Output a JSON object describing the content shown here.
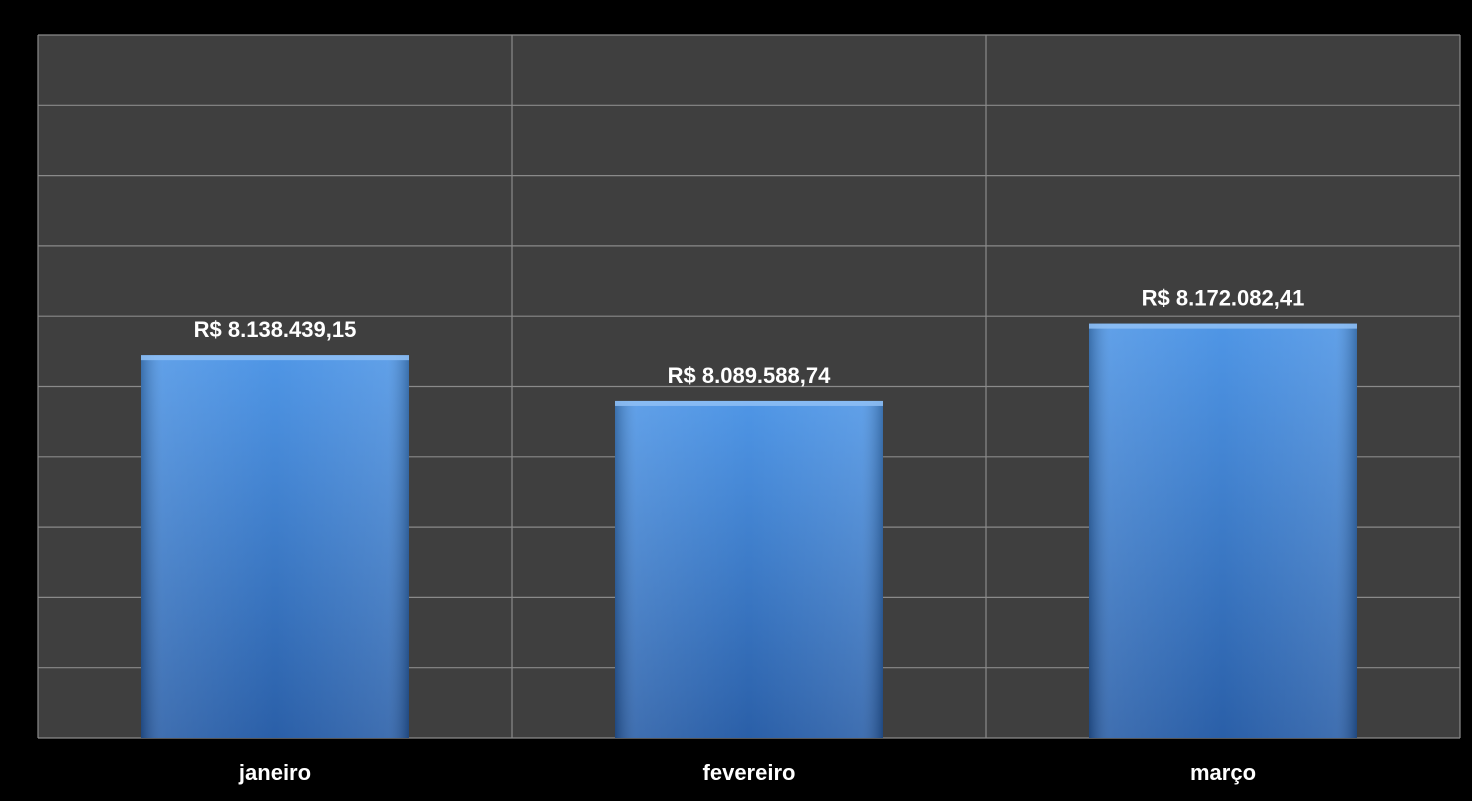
{
  "chart_data": {
    "type": "bar",
    "title": "",
    "xlabel": "",
    "ylabel": "",
    "categories": [
      "janeiro",
      "fevereiro",
      "março"
    ],
    "values": [
      8138439.15,
      8089588.74,
      8172082.41
    ],
    "data_labels": [
      "R$ 8.138.439,15",
      "R$ 8.089.588,74",
      "R$ 8.172.082,41"
    ],
    "ylim": [
      7730000,
      8480000
    ],
    "y_tick_labels_visible": false,
    "grid": true,
    "legend": "none",
    "colors": {
      "frame": "#000000",
      "plot_background": "#3f3f3f",
      "gridline": "#8a8a8a",
      "bar_top": "#4f96e6",
      "bar_bottom": "#2a5fa8",
      "text": "#ffffff"
    }
  }
}
